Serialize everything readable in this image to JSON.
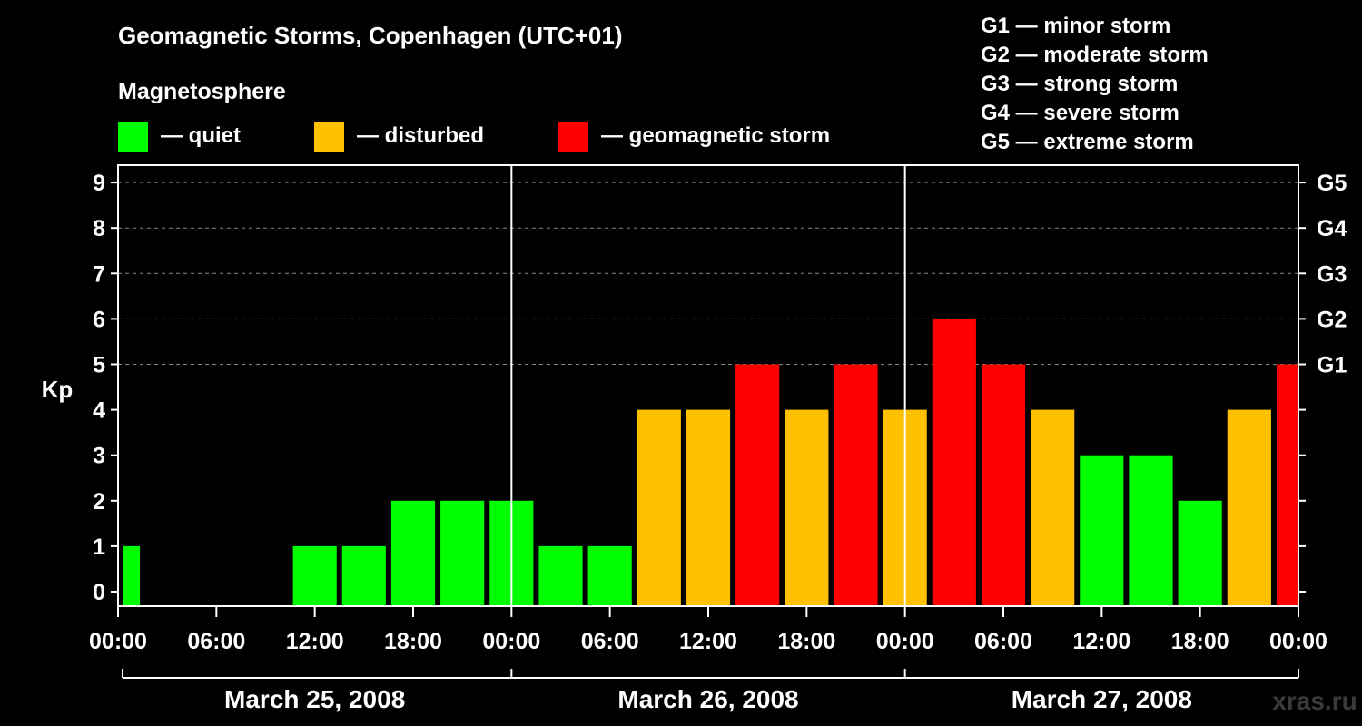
{
  "chart_data": {
    "type": "bar",
    "title": "Geomagnetic Storms, Copenhagen (UTC+01)",
    "subtitle": "Magnetosphere",
    "ylabel": "Kp",
    "ylim": [
      0,
      9
    ],
    "yticks": [
      "0",
      "1",
      "2",
      "3",
      "4",
      "5",
      "6",
      "7",
      "8",
      "9"
    ],
    "gscale": [
      {
        "kp": 5,
        "label": "G1"
      },
      {
        "kp": 6,
        "label": "G2"
      },
      {
        "kp": 7,
        "label": "G3"
      },
      {
        "kp": 8,
        "label": "G4"
      },
      {
        "kp": 9,
        "label": "G5"
      }
    ],
    "storm_legend": [
      "G1 — minor storm",
      "G2 — moderate storm",
      "G3 — strong storm",
      "G4 — severe storm",
      "G5 — extreme storm"
    ],
    "color_legend": [
      {
        "label": "— quiet",
        "color": "#00ff00"
      },
      {
        "label": "— disturbed",
        "color": "#ffc000"
      },
      {
        "label": "— geomagnetic storm",
        "color": "#ff0000"
      }
    ],
    "xtick_labels": [
      "00:00",
      "06:00",
      "12:00",
      "18:00",
      "00:00",
      "06:00",
      "12:00",
      "18:00",
      "00:00",
      "06:00",
      "12:00",
      "18:00",
      "00:00"
    ],
    "days": [
      "March 25, 2008",
      "March 26, 2008",
      "March 27, 2008"
    ],
    "bars": [
      {
        "hour": 0,
        "kp": 1
      },
      {
        "hour": 12,
        "kp": 1
      },
      {
        "hour": 15,
        "kp": 1
      },
      {
        "hour": 18,
        "kp": 2
      },
      {
        "hour": 21,
        "kp": 2
      },
      {
        "hour": 24,
        "kp": 2
      },
      {
        "hour": 27,
        "kp": 1
      },
      {
        "hour": 30,
        "kp": 1
      },
      {
        "hour": 33,
        "kp": 4
      },
      {
        "hour": 36,
        "kp": 4
      },
      {
        "hour": 39,
        "kp": 5
      },
      {
        "hour": 42,
        "kp": 4
      },
      {
        "hour": 45,
        "kp": 5
      },
      {
        "hour": 48,
        "kp": 4
      },
      {
        "hour": 51,
        "kp": 6
      },
      {
        "hour": 54,
        "kp": 5
      },
      {
        "hour": 57,
        "kp": 4
      },
      {
        "hour": 60,
        "kp": 3
      },
      {
        "hour": 63,
        "kp": 3
      },
      {
        "hour": 66,
        "kp": 2
      },
      {
        "hour": 69,
        "kp": 4
      },
      {
        "hour": 72,
        "kp": 5
      }
    ],
    "colors": {
      "quiet": "#00ff00",
      "disturbed": "#ffc000",
      "storm": "#ff0000"
    },
    "watermark": "xras.ru"
  }
}
